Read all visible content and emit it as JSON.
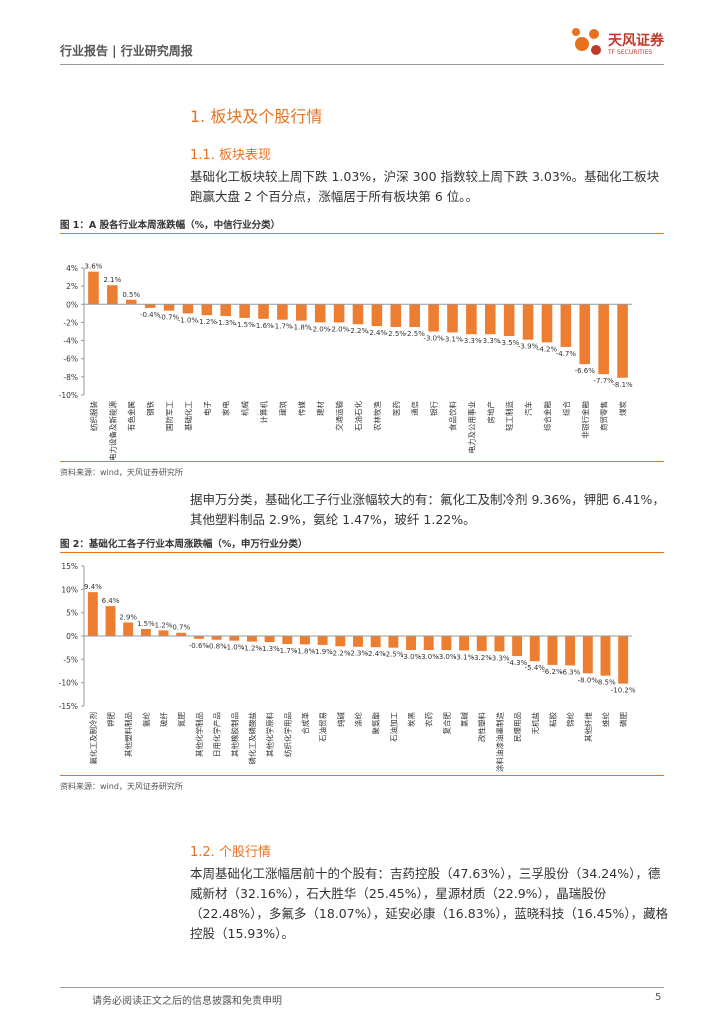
{
  "header": {
    "left": "行业报告 | 行业研究周报",
    "logo": "天风证券",
    "logo_en": "TF SECURITIES"
  },
  "sections": [
    {
      "heading": "1. 板块及个股行情"
    },
    {
      "heading": "1.1. 板块表现"
    },
    {
      "heading": "1.2. 个股行情"
    }
  ],
  "paragraphs": [
    "基础化工板块较上周下跌 1.03%，沪深 300 指数较上周下跌 3.03%。基础化工板块跑赢大盘 2 个百分点，涨幅居于所有板块第 6 位。。",
    "据申万分类，基础化工子行业涨幅较大的有：氟化工及制冷剂 9.36%，钾肥 6.41%，其他塑料制品 2.9%，氨纶 1.47%，玻纤 1.22%。",
    "本周基础化工涨幅居前十的个股有：吉药控股（47.63%），三孚股份（34.24%），德威新材（32.16%），石大胜华（25.45%），星源材质（22.9%），晶瑞股份（22.48%），多氟多（18.07%），延安必康（16.83%），蓝晓科技（16.45%），藏格控股（15.93%）。"
  ],
  "sources": [
    "资料来源：wind，天风证券研究所",
    "资料来源：wind，天风证券研究所"
  ],
  "footer": {
    "disclaimer": "请务必阅读正文之后的信息披露和免责申明",
    "page": "5"
  },
  "chart_data": [
    {
      "type": "bar",
      "title": "图 1：A 股各行业本周涨跌幅（%，中信行业分类）",
      "color": "#ed7d31",
      "categories": [
        "纺织服装",
        "电力设备及新能源",
        "有色金属",
        "钢铁",
        "国防军工",
        "基础化工",
        "电子",
        "家电",
        "机械",
        "计算机",
        "建筑",
        "传媒",
        "建材",
        "交通运输",
        "石油石化",
        "农林牧渔",
        "医药",
        "通信",
        "银行",
        "食品饮料",
        "电力及公用事业",
        "房地产",
        "轻工制造",
        "汽车",
        "综合金融",
        "综合",
        "非银行金融",
        "商贸零售",
        "煤炭"
      ],
      "values": [
        3.6,
        2.1,
        0.5,
        -0.4,
        -0.7,
        -1.0,
        -1.2,
        -1.3,
        -1.5,
        -1.6,
        -1.7,
        -1.8,
        -2.0,
        -2.0,
        -2.2,
        -2.4,
        -2.5,
        -2.5,
        -3.0,
        -3.1,
        -3.3,
        -3.3,
        -3.5,
        -3.9,
        -4.2,
        -4.7,
        -6.6,
        -7.7,
        -8.1
      ],
      "value_labels": [
        "3.6%",
        "2.1%",
        "0.5%",
        "-0.4%",
        "-0.7%",
        "-1.0%",
        "-1.2%",
        "-1.3%",
        "-1.5%",
        "-1.6%",
        "-1.7%",
        "-1.8%",
        "-2.0%",
        "-2.0%",
        "-2.2%",
        "-2.4%",
        "-2.5%",
        "-2.5%",
        "-3.0%",
        "-3.1%",
        "-3.3%",
        "-3.3%",
        "-3.5%",
        "-3.9%",
        "-4.2%",
        "-4.7%",
        "-6.6%",
        "-7.7%",
        "-8.1%"
      ],
      "ylim": [
        -10,
        4
      ],
      "yticks": [
        {
          "value": 4,
          "label": "4%"
        },
        {
          "value": 2,
          "label": "2%"
        },
        {
          "value": 0,
          "label": "0%"
        },
        {
          "value": -2,
          "label": "-2%"
        },
        {
          "value": -4,
          "label": "-4%"
        },
        {
          "value": -6,
          "label": "-6%"
        },
        {
          "value": -8,
          "label": "-8%"
        },
        {
          "value": -10,
          "label": "-10%"
        }
      ],
      "grid": false
    },
    {
      "type": "bar",
      "title": "图 2：基础化工各子行业本周涨跌幅（%，申万行业分类）",
      "color": "#ed7d31",
      "categories": [
        "氟化工及制冷剂",
        "钾肥",
        "其他塑料制品",
        "氨纶",
        "玻纤",
        "氮肥",
        "其他化学制品",
        "日用化学产品",
        "其他橡胶制品",
        "磷化工及磷酸盐",
        "其他化学原料",
        "纺织化学用品",
        "合成革",
        "石油贸易",
        "纯碱",
        "涤纶",
        "聚氨酯",
        "石油加工",
        "炭黑",
        "农药",
        "复合肥",
        "氯碱",
        "改性塑料",
        "涂料油漆油墨制造",
        "民爆用品",
        "无机盐",
        "粘胶",
        "锦纶",
        "其他纤维",
        "维纶",
        "磷肥"
      ],
      "values": [
        9.4,
        6.4,
        2.9,
        1.5,
        1.2,
        0.7,
        -0.6,
        -0.8,
        -1.0,
        -1.2,
        -1.3,
        -1.7,
        -1.8,
        -1.9,
        -2.2,
        -2.3,
        -2.4,
        -2.5,
        -3.0,
        -3.0,
        -3.0,
        -3.1,
        -3.2,
        -3.3,
        -4.3,
        -5.4,
        -6.2,
        -6.3,
        -8.0,
        -8.5,
        -10.2
      ],
      "value_labels": [
        "9.4%",
        "6.4%",
        "2.9%",
        "1.5%",
        "1.2%",
        "0.7%",
        "-0.6%",
        "-0.8%",
        "-1.0%",
        "-1.2%",
        "-1.3%",
        "-1.7%",
        "-1.8%",
        "-1.9%",
        "-2.2%",
        "-2.3%",
        "-2.4%",
        "-2.5%",
        "-3.0%",
        "-3.0%",
        "-3.0%",
        "-3.1%",
        "-3.2%",
        "-3.3%",
        "-4.3%",
        "-5.4%",
        "-6.2%",
        "-6.3%",
        "-8.0%",
        "-8.5%",
        "-10.2%"
      ],
      "ylim": [
        -15,
        15
      ],
      "yticks": [
        {
          "value": 15,
          "label": "15%"
        },
        {
          "value": 10,
          "label": "10%"
        },
        {
          "value": 5,
          "label": "5%"
        },
        {
          "value": 0,
          "label": "0%"
        },
        {
          "value": -5,
          "label": "-5%"
        },
        {
          "value": -10,
          "label": "-10%"
        },
        {
          "value": -15,
          "label": "-15%"
        }
      ],
      "grid": false
    }
  ]
}
